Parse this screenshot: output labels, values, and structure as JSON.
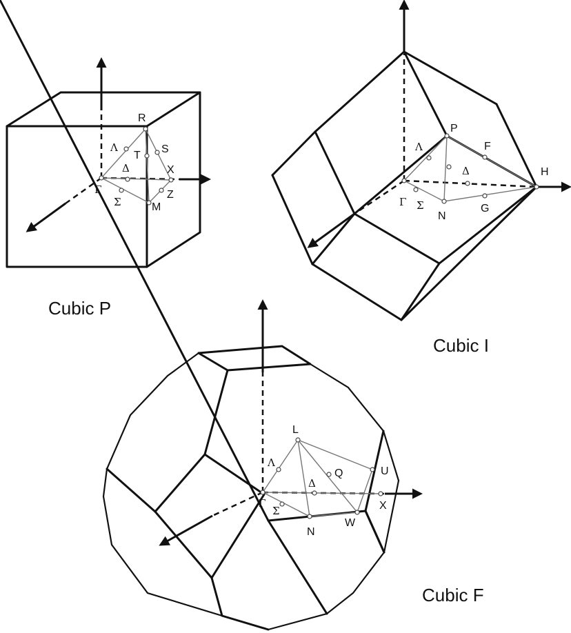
{
  "diagrams": [
    {
      "title": "Cubic P",
      "points": [
        "R",
        "Λ",
        "T",
        "S",
        "Δ",
        "X",
        "Γ",
        "Σ",
        "Z",
        "M"
      ]
    },
    {
      "title": "Cubic I",
      "points": [
        "P",
        "F",
        "Λ",
        "Δ",
        "H",
        "Γ",
        "Σ",
        "N",
        "G"
      ]
    },
    {
      "title": "Cubic F",
      "points": [
        "L",
        "Λ",
        "Q",
        "U",
        "Δ",
        "X",
        "Γ",
        "Σ",
        "N",
        "W"
      ]
    }
  ]
}
